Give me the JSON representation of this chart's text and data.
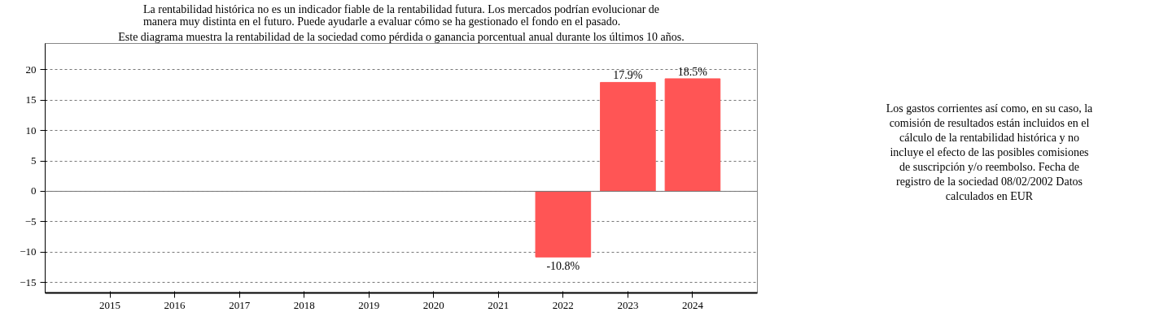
{
  "chart_data": {
    "type": "bar",
    "title": "La rentabilidad histórica no es un indicador fiable de la rentabilidad futura. Los mercados podrían evolucionar de manera muy distinta en el futuro. Puede ayudarle a evaluar cómo se ha gestionado el fondo en el pasado.",
    "subtitle": "Este diagrama muestra la rentabilidad de la sociedad como pérdida o ganancia porcentual anual durante los últimos 10 años.",
    "annotations": [
      "Los gastos corrientes así como, en su caso, la comisión de resultados están incluidos en el cálculo de la rentabilidad histórica y no incluye el efecto de las posibles comisiones de suscripción y/o reembolso. Fecha de registro de la sociedad 08/02/2002 Datos calculados en EUR"
    ],
    "categories": [
      "2015",
      "2016",
      "2017",
      "2018",
      "2019",
      "2020",
      "2021",
      "2022",
      "2023",
      "2024"
    ],
    "values": [
      null,
      null,
      null,
      null,
      null,
      null,
      null,
      -10.8,
      17.9,
      18.5
    ],
    "value_labels": [
      null,
      null,
      null,
      null,
      null,
      null,
      null,
      "-10.8%",
      "17.9%",
      "18.5%"
    ],
    "color": "#ff5555",
    "ylim": [
      -16.7,
      24.3
    ],
    "yticks": [
      -15,
      -10,
      -5,
      0,
      5,
      10,
      15,
      20
    ],
    "grid": "y"
  }
}
